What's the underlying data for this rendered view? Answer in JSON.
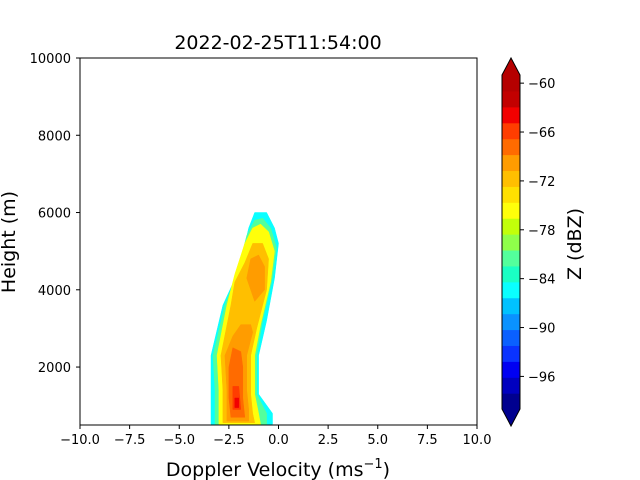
{
  "chart_data": {
    "type": "heatmap",
    "subtype": "filled-contour",
    "title": "2022-02-25T11:54:00",
    "xlabel_main": "Doppler Velocity (ms",
    "xlabel_sup": "−1",
    "xlabel_close": ")",
    "ylabel": "Height (m)",
    "xlim": [
      -10,
      10
    ],
    "ylim": [
      500,
      10000
    ],
    "x_ticks": [
      -10,
      -7.5,
      -5,
      -2.5,
      0,
      2.5,
      5,
      7.5,
      10
    ],
    "x_tick_labels": [
      "−10.0",
      "−7.5",
      "−5.0",
      "−2.5",
      "0.0",
      "2.5",
      "5.0",
      "7.5",
      "10.0"
    ],
    "y_ticks": [
      2000,
      4000,
      6000,
      8000,
      10000
    ],
    "y_tick_labels": [
      "2000",
      "4000",
      "6000",
      "8000",
      "10000"
    ],
    "colorbar": {
      "label": "Z (dBZ)",
      "min": -100,
      "max": -59,
      "level_step": 2,
      "ticks": [
        -96,
        -90,
        -84,
        -78,
        -72,
        -66,
        -60
      ],
      "tick_labels": [
        "−96",
        "−90",
        "−84",
        "−78",
        "−72",
        "−66",
        "−60"
      ],
      "extend": "both",
      "under_color": "#00008f",
      "over_color": "#b50000",
      "colors": [
        "#00008f",
        "#0000bf",
        "#0000f2",
        "#0a33ff",
        "#0a60ff",
        "#0a92ff",
        "#00c2ff",
        "#0affff",
        "#1affc4",
        "#53ff9c",
        "#8fff4a",
        "#c2ff0a",
        "#ffff0a",
        "#ffe000",
        "#ffbf00",
        "#ff9c00",
        "#ff6b00",
        "#ff3d00",
        "#f20000",
        "#c20000",
        "#b50000"
      ]
    },
    "layers": [
      {
        "level": -88,
        "color": "#0affff",
        "polygon": [
          [
            -3.4,
            520
          ],
          [
            -0.3,
            520
          ],
          [
            -0.3,
            800
          ],
          [
            -1.0,
            1300
          ],
          [
            -1.0,
            2300
          ],
          [
            -0.6,
            3200
          ],
          [
            -0.2,
            4300
          ],
          [
            0.0,
            5200
          ],
          [
            -0.2,
            5600
          ],
          [
            -0.6,
            6000
          ],
          [
            -1.2,
            6000
          ],
          [
            -1.5,
            5600
          ],
          [
            -2.0,
            4500
          ],
          [
            -2.8,
            3600
          ],
          [
            -3.4,
            2300
          ],
          [
            -3.4,
            1400
          ]
        ]
      },
      {
        "level": -84,
        "color": "#53ff9c",
        "polygon": [
          [
            -3.2,
            520
          ],
          [
            -0.6,
            520
          ],
          [
            -0.6,
            800
          ],
          [
            -1.1,
            1300
          ],
          [
            -1.1,
            2300
          ],
          [
            -0.8,
            3200
          ],
          [
            -0.3,
            4300
          ],
          [
            -0.1,
            5100
          ],
          [
            -0.4,
            5600
          ],
          [
            -0.8,
            5850
          ],
          [
            -1.2,
            5800
          ],
          [
            -1.6,
            5400
          ],
          [
            -2.1,
            4400
          ],
          [
            -2.7,
            3600
          ],
          [
            -3.3,
            2300
          ],
          [
            -3.2,
            1400
          ]
        ]
      },
      {
        "level": -78,
        "color": "#ffff0a",
        "polygon": [
          [
            -3.0,
            520
          ],
          [
            -0.9,
            520
          ],
          [
            -1.0,
            800
          ],
          [
            -1.2,
            1300
          ],
          [
            -1.2,
            2300
          ],
          [
            -0.9,
            3100
          ],
          [
            -0.4,
            4200
          ],
          [
            -0.2,
            5000
          ],
          [
            -0.5,
            5500
          ],
          [
            -0.9,
            5700
          ],
          [
            -1.3,
            5600
          ],
          [
            -1.7,
            5200
          ],
          [
            -2.2,
            4400
          ],
          [
            -2.6,
            3600
          ],
          [
            -3.1,
            2300
          ],
          [
            -3.0,
            1400
          ]
        ]
      },
      {
        "level": -72,
        "color": "#ffbf00",
        "polygon": [
          [
            -2.8,
            560
          ],
          [
            -1.2,
            560
          ],
          [
            -1.3,
            800
          ],
          [
            -1.4,
            1300
          ],
          [
            -1.4,
            2300
          ],
          [
            -1.1,
            3000
          ],
          [
            -0.6,
            4000
          ],
          [
            -0.5,
            4800
          ],
          [
            -0.8,
            5200
          ],
          [
            -1.3,
            5200
          ],
          [
            -1.7,
            4700
          ],
          [
            -2.2,
            4200
          ],
          [
            -2.4,
            3600
          ],
          [
            -2.9,
            2300
          ],
          [
            -2.8,
            1400
          ]
        ]
      },
      {
        "level": -68,
        "color": "#ff9c00",
        "polygon": [
          [
            -2.6,
            600
          ],
          [
            -1.5,
            600
          ],
          [
            -1.5,
            900
          ],
          [
            -1.6,
            1400
          ],
          [
            -1.6,
            2300
          ],
          [
            -1.3,
            2900
          ],
          [
            -1.4,
            3100
          ],
          [
            -1.9,
            3100
          ],
          [
            -2.3,
            2800
          ],
          [
            -2.7,
            2300
          ],
          [
            -2.6,
            1400
          ]
        ]
      },
      {
        "level": -68,
        "color": "#ff9c00",
        "polygon": [
          [
            -1.2,
            3700
          ],
          [
            -0.7,
            4000
          ],
          [
            -0.7,
            4600
          ],
          [
            -1.0,
            4900
          ],
          [
            -1.4,
            4800
          ],
          [
            -1.6,
            4300
          ]
        ]
      },
      {
        "level": -64,
        "color": "#ff6b00",
        "polygon": [
          [
            -2.4,
            700
          ],
          [
            -1.7,
            700
          ],
          [
            -1.8,
            1200
          ],
          [
            -1.8,
            2000
          ],
          [
            -1.9,
            2400
          ],
          [
            -2.3,
            2500
          ],
          [
            -2.5,
            2000
          ],
          [
            -2.5,
            1200
          ]
        ]
      },
      {
        "level": -62,
        "color": "#ff3d00",
        "polygon": [
          [
            -2.3,
            900
          ],
          [
            -1.9,
            900
          ],
          [
            -2.0,
            1500
          ],
          [
            -2.3,
            1500
          ]
        ]
      },
      {
        "level": -60,
        "color": "#f20000",
        "polygon": [
          [
            -2.2,
            950
          ],
          [
            -2.0,
            950
          ],
          [
            -2.0,
            1200
          ],
          [
            -2.2,
            1200
          ]
        ]
      }
    ]
  }
}
